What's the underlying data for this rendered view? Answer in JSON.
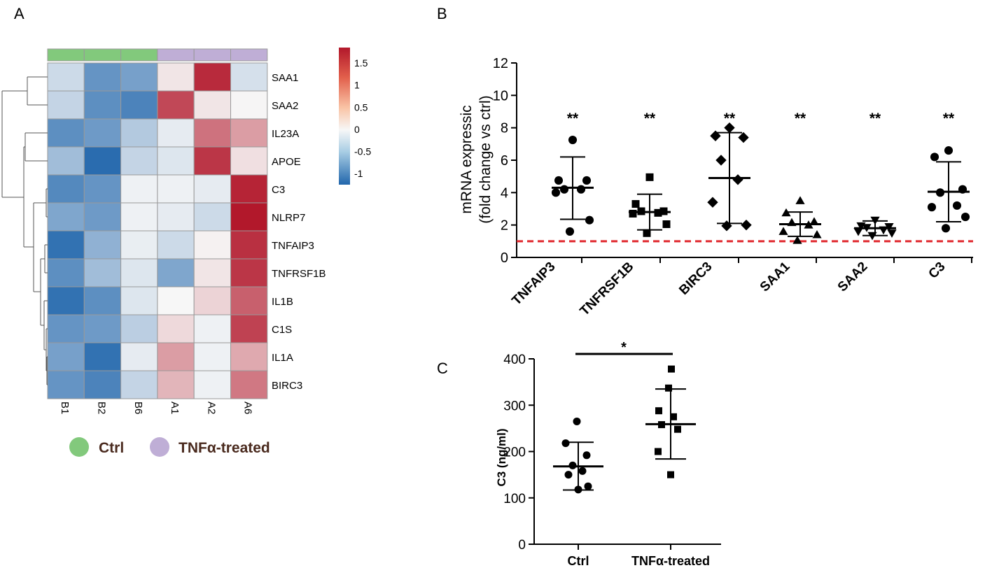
{
  "panel_labels": {
    "a": "A",
    "b": "B",
    "c": "C"
  },
  "colors": {
    "ctrl": "#82c97c",
    "tnf": "#bfaed6",
    "threshold": "#e0282e",
    "heat_low": "#2166ac",
    "heat_mid": "#f7f7f7",
    "heat_high": "#b2182b"
  },
  "legend": {
    "ctrl_label": "Ctrl",
    "tnf_label": "TNFα-treated"
  },
  "chart_data": [
    {
      "type": "heatmap",
      "panel": "A",
      "columns": [
        "B1",
        "B2",
        "B6",
        "A1",
        "A2",
        "A6"
      ],
      "column_groups": [
        "Ctrl",
        "Ctrl",
        "Ctrl",
        "TNFα-treated",
        "TNFα-treated",
        "TNFα-treated"
      ],
      "rows": [
        "SAA1",
        "SAA2",
        "IL23A",
        "APOE",
        "C3",
        "NLRP7",
        "TNFAIP3",
        "TNFRSF1B",
        "IL1B",
        "C1S",
        "IL1A",
        "BIRC3"
      ],
      "values": [
        [
          -0.25,
          -0.85,
          -0.75,
          0.15,
          1.7,
          -0.2
        ],
        [
          -0.3,
          -0.9,
          -1.0,
          1.45,
          0.15,
          0.02
        ],
        [
          -0.9,
          -0.8,
          -0.4,
          -0.1,
          1.1,
          0.75
        ],
        [
          -0.5,
          -1.2,
          -0.3,
          -0.15,
          1.6,
          0.2
        ],
        [
          -0.95,
          -0.85,
          -0.05,
          -0.05,
          -0.1,
          1.75
        ],
        [
          -0.7,
          -0.8,
          -0.05,
          -0.1,
          -0.25,
          1.85
        ],
        [
          -1.15,
          -0.6,
          -0.08,
          -0.25,
          0.05,
          1.65
        ],
        [
          -0.9,
          -0.5,
          -0.15,
          -0.7,
          0.15,
          1.6
        ],
        [
          -1.15,
          -0.9,
          -0.15,
          0.0,
          0.3,
          1.25
        ],
        [
          -0.85,
          -0.8,
          -0.35,
          0.25,
          -0.05,
          1.5
        ],
        [
          -0.75,
          -1.15,
          -0.1,
          0.75,
          -0.05,
          0.65
        ],
        [
          -0.85,
          -1.0,
          -0.3,
          0.55,
          -0.05,
          1.05
        ]
      ],
      "colorbar": {
        "min": -1.25,
        "max": 1.85,
        "ticks": [
          1.5,
          1,
          0.5,
          0,
          -0.5,
          -1
        ],
        "tick_labels": [
          "1.5",
          "1",
          "0.5",
          "0",
          "-0.5",
          "-1"
        ]
      }
    },
    {
      "type": "scatter",
      "panel": "B",
      "ylabel_line1": "mRNA expressic",
      "ylabel_line2": "(fold change vs ctrl)",
      "ylim": [
        0,
        12
      ],
      "yticks": [
        0,
        2,
        4,
        6,
        8,
        10,
        12
      ],
      "ytick_labels": [
        "0",
        "2",
        "4",
        "6",
        "8",
        "10",
        "12"
      ],
      "reference_line": 1,
      "categories": [
        "TNFAIP3",
        "TNFRSF1B",
        "BIRC3",
        "SAA1",
        "SAA2",
        "C3"
      ],
      "markers": [
        "circle",
        "square",
        "diamond",
        "triangle-up",
        "triangle-down",
        "circle"
      ],
      "significance": [
        "**",
        "**",
        "**",
        "**",
        "**",
        "**"
      ],
      "means": [
        4.3,
        2.8,
        4.9,
        2.05,
        1.8,
        4.05
      ],
      "sd_upper": [
        6.2,
        3.9,
        7.7,
        2.8,
        2.25,
        5.9
      ],
      "sd_lower": [
        2.35,
        1.7,
        2.1,
        1.3,
        1.35,
        2.2
      ],
      "points": [
        [
          7.25,
          4.75,
          4.75,
          4.2,
          4.2,
          4.0,
          2.3,
          1.6
        ],
        [
          4.95,
          3.3,
          2.85,
          2.85,
          2.75,
          2.7,
          2.05,
          1.5
        ],
        [
          8.0,
          7.5,
          7.4,
          6.0,
          4.8,
          3.4,
          2.0,
          1.95
        ],
        [
          3.5,
          2.75,
          2.2,
          2.15,
          2.0,
          1.6,
          1.4,
          1.05
        ],
        [
          2.3,
          1.95,
          1.9,
          1.85,
          1.7,
          1.6,
          1.5,
          1.35
        ],
        [
          6.6,
          6.2,
          4.2,
          4.0,
          3.2,
          3.1,
          2.5,
          1.8
        ]
      ]
    },
    {
      "type": "scatter",
      "panel": "C",
      "ylabel": "C3 (ng/ml)",
      "ylim": [
        0,
        400
      ],
      "yticks": [
        0,
        100,
        200,
        300,
        400
      ],
      "ytick_labels": [
        "0",
        "100",
        "200",
        "300",
        "400"
      ],
      "categories": [
        "Ctrl",
        "TNFα-treated"
      ],
      "markers": [
        "circle",
        "square"
      ],
      "means": [
        168,
        259
      ],
      "sd_upper": [
        220,
        335
      ],
      "sd_lower": [
        117,
        184
      ],
      "points": [
        [
          265,
          218,
          192,
          170,
          158,
          150,
          125,
          118
        ],
        [
          378,
          337,
          288,
          275,
          258,
          248,
          200,
          150
        ]
      ],
      "significance": "*"
    }
  ]
}
